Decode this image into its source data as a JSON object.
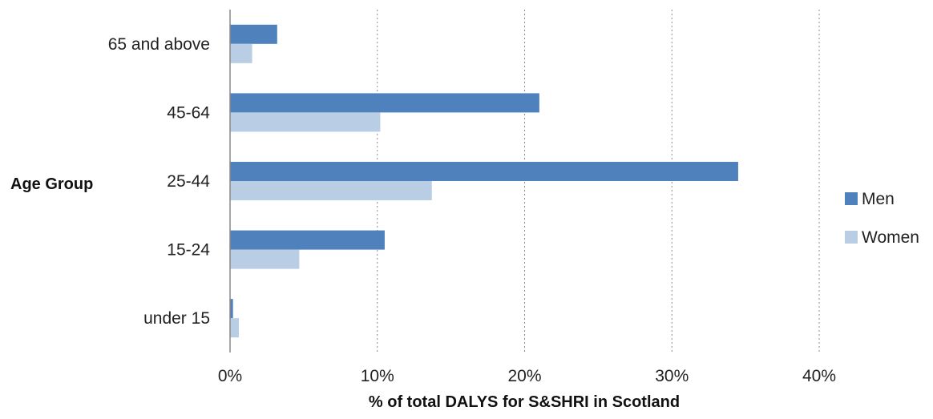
{
  "chart_data": {
    "type": "bar",
    "orientation": "horizontal",
    "categories": [
      "65 and above",
      "45-64",
      "25-44",
      "15-24",
      "under 15"
    ],
    "series": [
      {
        "name": "Men",
        "color": "#4F81BD",
        "values": [
          3.2,
          21.0,
          34.5,
          10.5,
          0.2
        ]
      },
      {
        "name": "Women",
        "color": "#B9CDE5",
        "values": [
          1.5,
          10.2,
          13.7,
          4.7,
          0.6
        ]
      }
    ],
    "xlabel": "% of total DALYS for S&SHRI in Scotland",
    "ylabel": "Age Group",
    "xlim": [
      0,
      40
    ],
    "x_ticks": [
      "0%",
      "10%",
      "20%",
      "30%",
      "40%"
    ],
    "grid": "vertical dotted",
    "legend_position": "right"
  }
}
